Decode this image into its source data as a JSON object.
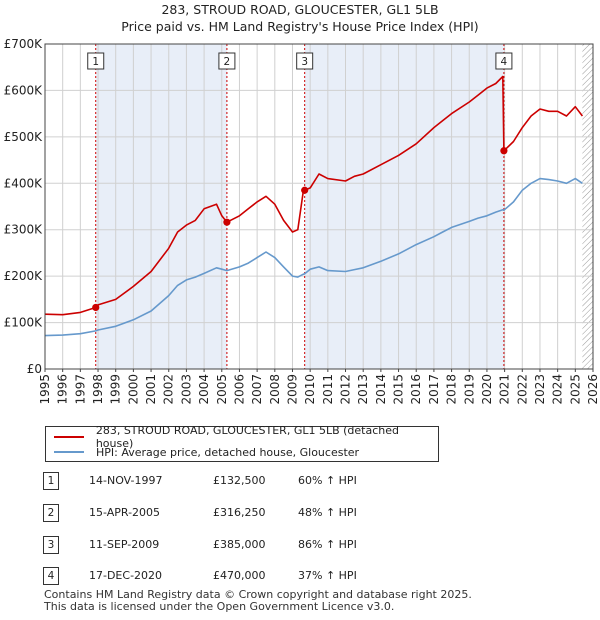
{
  "title_line1": "283, STROUD ROAD, GLOUCESTER, GL1 5LB",
  "title_line2": "Price paid vs. HM Land Registry's House Price Index (HPI)",
  "colors": {
    "property": "#cc0000",
    "hpi": "#6699cc",
    "shade": "#e8eef8",
    "grid": "#d0d0d0"
  },
  "legend": {
    "property_label": "283, STROUD ROAD, GLOUCESTER, GL1 5LB (detached house)",
    "hpi_label": "HPI: Average price, detached house, Gloucester"
  },
  "sales": [
    {
      "num": "1",
      "date": "14-NOV-1997",
      "price": "£132,500",
      "hpi": "60% ↑ HPI"
    },
    {
      "num": "2",
      "date": "15-APR-2005",
      "price": "£316,250",
      "hpi": "48% ↑ HPI"
    },
    {
      "num": "3",
      "date": "11-SEP-2009",
      "price": "£385,000",
      "hpi": "86% ↑ HPI"
    },
    {
      "num": "4",
      "date": "17-DEC-2020",
      "price": "£470,000",
      "hpi": "37% ↑ HPI"
    }
  ],
  "footer": {
    "line1": "Contains HM Land Registry data © Crown copyright and database right 2025.",
    "line2": "This data is licensed under the Open Government Licence v3.0."
  },
  "chart_data": {
    "type": "line",
    "title": "283, STROUD ROAD, GLOUCESTER, GL1 5LB — Price paid vs. HM Land Registry's House Price Index (HPI)",
    "xlabel": "",
    "ylabel": "",
    "xlim": [
      1995,
      2026
    ],
    "ylim": [
      0,
      700000
    ],
    "x_ticks": [
      1995,
      1996,
      1997,
      1998,
      1999,
      2000,
      2001,
      2002,
      2003,
      2004,
      2005,
      2006,
      2007,
      2008,
      2009,
      2010,
      2011,
      2012,
      2013,
      2014,
      2015,
      2016,
      2017,
      2018,
      2019,
      2020,
      2021,
      2022,
      2023,
      2024,
      2025,
      2026
    ],
    "y_ticks": [
      0,
      100000,
      200000,
      300000,
      400000,
      500000,
      600000,
      700000
    ],
    "y_tick_labels": [
      "£0",
      "£100K",
      "£200K",
      "£300K",
      "£400K",
      "£500K",
      "£600K",
      "£700K"
    ],
    "grid": true,
    "shaded_ranges": [
      [
        1997.87,
        2005.29
      ],
      [
        2009.69,
        2020.96
      ]
    ],
    "hatched_range": [
      2025.4,
      2026
    ],
    "sale_markers": [
      {
        "label": "1",
        "x": 1997.87,
        "y": 132500
      },
      {
        "label": "2",
        "x": 2005.29,
        "y": 316250
      },
      {
        "label": "3",
        "x": 2009.69,
        "y": 385000
      },
      {
        "label": "4",
        "x": 2020.96,
        "y": 470000
      }
    ],
    "series": [
      {
        "name": "283, STROUD ROAD, GLOUCESTER, GL1 5LB (detached house)",
        "x": [
          1995,
          1996,
          1997,
          1997.87,
          1998,
          1999,
          2000,
          2001,
          2002,
          2002.5,
          2003,
          2003.5,
          2004,
          2004.7,
          2005,
          2005.29,
          2006,
          2006.5,
          2007,
          2007.5,
          2008,
          2008.5,
          2009,
          2009.3,
          2009.6,
          2009.69,
          2010,
          2010.5,
          2011,
          2012,
          2012.5,
          2013,
          2014,
          2015,
          2016,
          2017,
          2017.5,
          2018,
          2019,
          2019.5,
          2020,
          2020.5,
          2020.9,
          2020.96,
          2021.5,
          2022,
          2022.5,
          2023,
          2023.5,
          2024,
          2024.5,
          2025,
          2025.4
        ],
        "y": [
          118000,
          117000,
          122000,
          132500,
          138000,
          150000,
          178000,
          210000,
          260000,
          295000,
          310000,
          320000,
          345000,
          355000,
          330000,
          316250,
          330000,
          345000,
          360000,
          372000,
          355000,
          320000,
          295000,
          300000,
          380000,
          385000,
          390000,
          420000,
          410000,
          405000,
          415000,
          420000,
          440000,
          460000,
          485000,
          520000,
          535000,
          550000,
          575000,
          590000,
          605000,
          615000,
          630000,
          470000,
          490000,
          520000,
          545000,
          560000,
          555000,
          555000,
          545000,
          565000,
          545000
        ]
      },
      {
        "name": "HPI: Average price, detached house, Gloucester",
        "x": [
          1995,
          1996,
          1997,
          1997.87,
          1998,
          1999,
          2000,
          2001,
          2002,
          2002.5,
          2003,
          2003.5,
          2004,
          2004.7,
          2005,
          2005.29,
          2006,
          2006.5,
          2007,
          2007.5,
          2008,
          2008.5,
          2009,
          2009.3,
          2009.6,
          2009.69,
          2010,
          2010.5,
          2011,
          2012,
          2012.5,
          2013,
          2014,
          2015,
          2016,
          2017,
          2017.5,
          2018,
          2019,
          2019.5,
          2020,
          2020.5,
          2020.9,
          2020.96,
          2021.5,
          2022,
          2022.5,
          2023,
          2023.5,
          2024,
          2024.5,
          2025,
          2025.4
        ],
        "y": [
          72000,
          73000,
          76000,
          82000,
          84000,
          92000,
          106000,
          125000,
          158000,
          180000,
          192000,
          198000,
          206000,
          218000,
          215000,
          212000,
          220000,
          228000,
          240000,
          252000,
          240000,
          220000,
          200000,
          198000,
          204000,
          205000,
          215000,
          220000,
          212000,
          210000,
          214000,
          218000,
          232000,
          248000,
          268000,
          285000,
          295000,
          305000,
          318000,
          325000,
          330000,
          338000,
          343000,
          342000,
          360000,
          385000,
          400000,
          410000,
          408000,
          405000,
          400000,
          410000,
          400000
        ]
      }
    ]
  }
}
